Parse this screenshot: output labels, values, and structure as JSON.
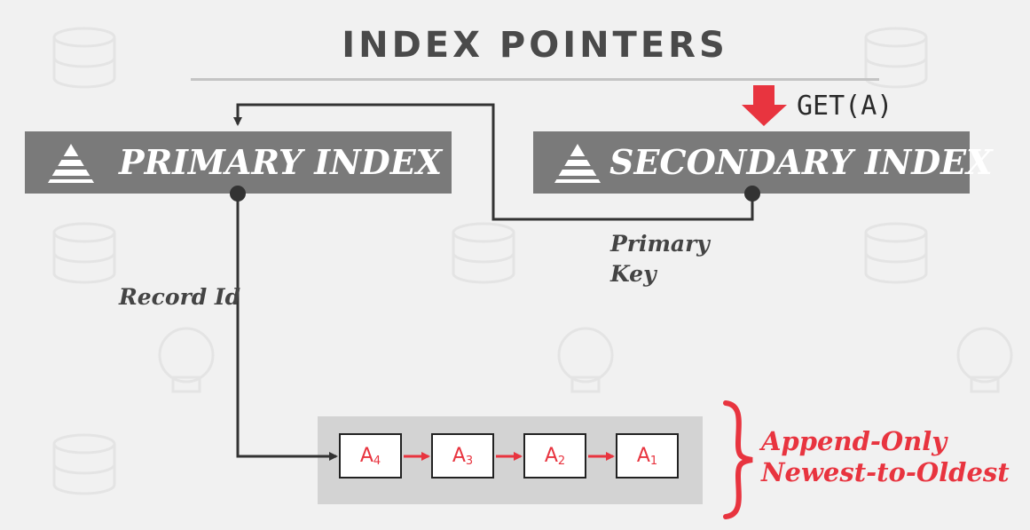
{
  "title": "INDEX POINTERS",
  "query": "GET(A)",
  "primary_index": {
    "label": "PRIMARY INDEX",
    "icon": "pyramid-icon"
  },
  "secondary_index": {
    "label": "SECONDARY INDEX",
    "icon": "pyramid-icon"
  },
  "edges": {
    "record_id": "Record Id",
    "primary_key_line1": "Primary",
    "primary_key_line2": "Key"
  },
  "versions": [
    {
      "base": "A",
      "sub": "4"
    },
    {
      "base": "A",
      "sub": "3"
    },
    {
      "base": "A",
      "sub": "2"
    },
    {
      "base": "A",
      "sub": "1"
    }
  ],
  "annotation": {
    "line1": "Append-Only",
    "line2": "Newest-to-Oldest"
  },
  "colors": {
    "accent": "#e8343f",
    "box": "#7a7a7a",
    "chain_bg": "#d3d3d3",
    "text_dark": "#4a4a4a"
  }
}
